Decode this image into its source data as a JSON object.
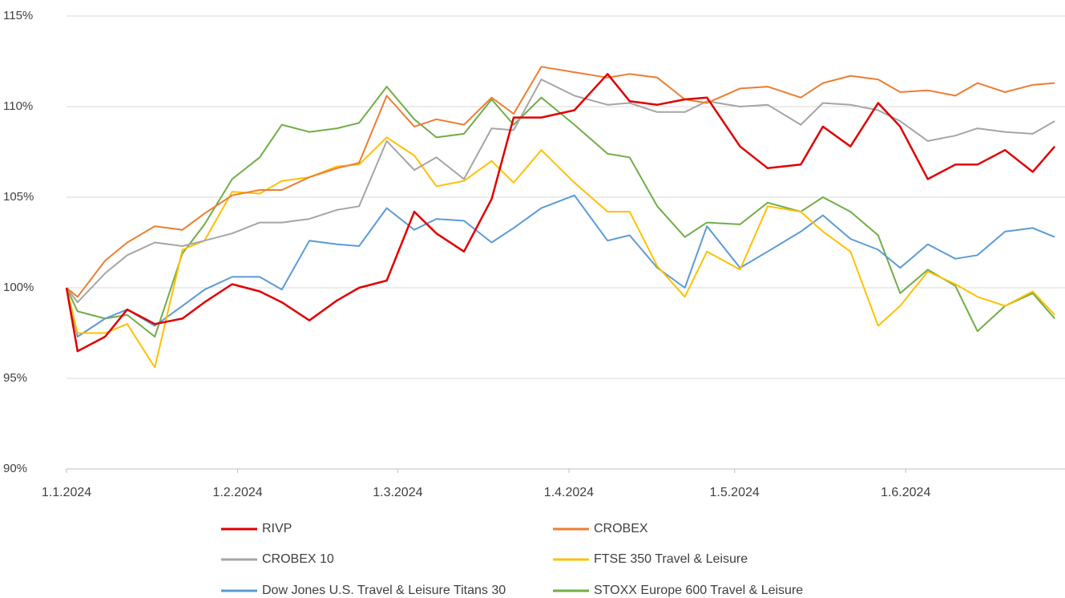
{
  "chart_data": {
    "type": "line",
    "x": [
      "1.1.2024",
      "3.1.2024",
      "8.1.2024",
      "12.1.2024",
      "17.1.2024",
      "22.1.2024",
      "26.1.2024",
      "31.1.2024",
      "5.2.2024",
      "9.2.2024",
      "14.2.2024",
      "19.2.2024",
      "23.2.2024",
      "28.2.2024",
      "4.3.2024",
      "8.3.2024",
      "13.3.2024",
      "18.3.2024",
      "22.3.2024",
      "27.3.2024",
      "2.4.2024",
      "8.4.2024",
      "12.4.2024",
      "17.4.2024",
      "22.4.2024",
      "26.4.2024",
      "2.5.2024",
      "7.5.2024",
      "13.5.2024",
      "17.5.2024",
      "22.5.2024",
      "27.5.2024",
      "31.5.2024",
      "5.6.2024",
      "10.6.2024",
      "14.6.2024",
      "19.6.2024",
      "24.6.2024",
      "28.6.2024"
    ],
    "series": [
      {
        "name": "RIVP",
        "color": "#e00000",
        "values": [
          100,
          96.5,
          97.3,
          98.8,
          98.0,
          98.3,
          99.2,
          100.2,
          99.8,
          99.2,
          98.2,
          99.3,
          100,
          100.4,
          104.2,
          103.0,
          102.0,
          104.9,
          109.4,
          109.4,
          109.8,
          111.8,
          110.3,
          110.1,
          110.4,
          110.5,
          107.8,
          106.6,
          106.8,
          108.9,
          107.8,
          110.2,
          108.9,
          106.0,
          106.8,
          106.8,
          107.6,
          106.4,
          107.8
        ]
      },
      {
        "name": "CROBEX",
        "color": "#ed7d31",
        "values": [
          100,
          99.5,
          101.5,
          102.5,
          103.4,
          103.2,
          104.1,
          105.1,
          105.4,
          105.4,
          106.1,
          106.6,
          106.9,
          110.6,
          108.9,
          109.3,
          109.0,
          110.5,
          109.6,
          112.2,
          111.9,
          111.6,
          111.8,
          111.6,
          110.4,
          110.2,
          111.0,
          111.1,
          110.5,
          111.3,
          111.7,
          111.5,
          110.8,
          110.9,
          110.6,
          111.3,
          110.8,
          111.2,
          111.3
        ]
      },
      {
        "name": "CROBEX 10",
        "color": "#a5a5a5",
        "values": [
          100,
          99.2,
          100.8,
          101.8,
          102.5,
          102.3,
          102.6,
          103.0,
          103.6,
          103.6,
          103.8,
          104.3,
          104.5,
          108.1,
          106.5,
          107.2,
          106.0,
          108.8,
          108.7,
          111.5,
          110.6,
          110.1,
          110.2,
          109.7,
          109.7,
          110.3,
          110.0,
          110.1,
          109.0,
          110.2,
          110.1,
          109.8,
          109.2,
          108.1,
          108.4,
          108.8,
          108.6,
          108.5,
          109.2
        ]
      },
      {
        "name": "FTSE 350 Travel & Leisure",
        "color": "#ffc000",
        "values": [
          100,
          97.5,
          97.5,
          98.0,
          95.6,
          102.1,
          102.6,
          105.3,
          105.2,
          105.9,
          106.1,
          106.7,
          106.8,
          108.3,
          107.3,
          105.6,
          105.9,
          107.0,
          105.8,
          107.6,
          105.8,
          104.2,
          104.2,
          101.2,
          99.5,
          102.0,
          101.0,
          104.5,
          104.2,
          103.1,
          102.0,
          97.9,
          99.0,
          100.9,
          100.2,
          99.5,
          99.0,
          99.8,
          98.5
        ]
      },
      {
        "name": "Dow Jones U.S. Travel & Leisure Titans 30",
        "color": "#5b9bd5",
        "values": [
          100,
          97.3,
          98.3,
          98.8,
          97.9,
          99.0,
          99.9,
          100.6,
          100.6,
          99.9,
          102.6,
          102.4,
          102.3,
          104.4,
          103.2,
          103.8,
          103.7,
          102.5,
          103.3,
          104.4,
          105.1,
          102.6,
          102.9,
          101.1,
          100.0,
          103.4,
          101.1,
          102.0,
          103.1,
          104.0,
          102.7,
          102.1,
          101.1,
          102.4,
          101.6,
          101.8,
          103.1,
          103.3,
          102.8
        ]
      },
      {
        "name": "STOXX Europe 600 Travel & Leisure",
        "color": "#70ad47",
        "values": [
          100,
          98.7,
          98.3,
          98.5,
          97.3,
          101.9,
          103.5,
          106.0,
          107.2,
          109.0,
          108.6,
          108.8,
          109.1,
          111.1,
          109.3,
          108.3,
          108.5,
          110.4,
          109.0,
          110.5,
          109.0,
          107.4,
          107.2,
          104.5,
          102.8,
          103.6,
          103.5,
          104.7,
          104.2,
          105.0,
          104.2,
          102.9,
          99.7,
          101.0,
          100.1,
          97.6,
          99.0,
          99.7,
          98.3
        ]
      }
    ],
    "xlim": [
      "1.1.2024",
      "30.6.2024"
    ],
    "xticks": [
      "1.1.2024",
      "1.2.2024",
      "1.3.2024",
      "1.4.2024",
      "1.5.2024",
      "1.6.2024"
    ],
    "ylim": [
      90,
      115
    ],
    "yticks": [
      {
        "value": 90,
        "label": "90%"
      },
      {
        "value": 95,
        "label": "95%"
      },
      {
        "value": 100,
        "label": "100%"
      },
      {
        "value": 105,
        "label": "105%"
      },
      {
        "value": 110,
        "label": "110%"
      },
      {
        "value": 115,
        "label": "115%"
      }
    ],
    "grid": true
  }
}
